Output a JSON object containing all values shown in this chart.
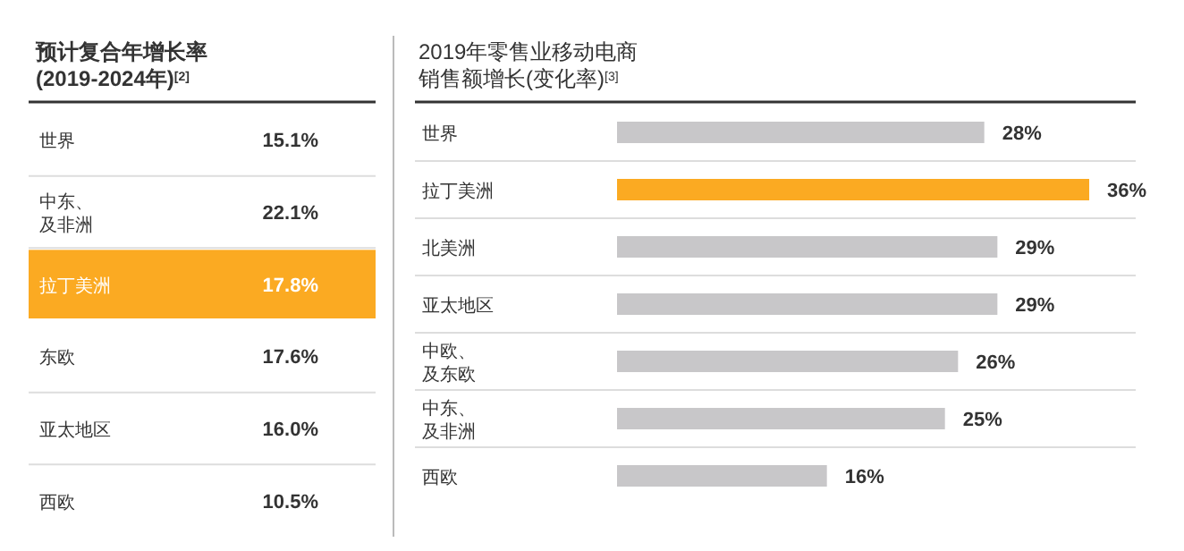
{
  "chart_data": [
    {
      "type": "other",
      "title": "预计复合年增长率(2019-2024年)$^{[2]}$",
      "categories": [
        "世界",
        "中东、及非洲",
        "拉丁美洲",
        "东欧",
        "亚太地区",
        "西欧"
      ],
      "value_labels": [
        "15.1%",
        "22.1%",
        "17.8%",
        "17.6%",
        "16.0%",
        "10.5%"
      ],
      "colors": [
        null,
        null,
        "#fbaa22",
        null,
        null,
        null
      ]
    },
    {
      "type": "bar",
      "orientation": "horizontal",
      "title": "2019年零售业移动电商销售额增长(变化率)$^{[3]}$",
      "categories": [
        "世界",
        "拉丁美洲",
        "北美洲",
        "亚太地区",
        "中欧、及东欧",
        "中东、及非洲",
        "西欧"
      ],
      "values": [
        28,
        36,
        29,
        29,
        26,
        25,
        16
      ],
      "value_labels": [
        "28%",
        "36%",
        "29%",
        "29%",
        "26%",
        "25%",
        "16%"
      ],
      "colors": [
        "#c8c7c9",
        "#fbaa22",
        "#c8c7c9",
        "#c8c7c9",
        "#c8c7c9",
        "#c8c7c9",
        "#c8c7c9"
      ]
    }
  ]
}
